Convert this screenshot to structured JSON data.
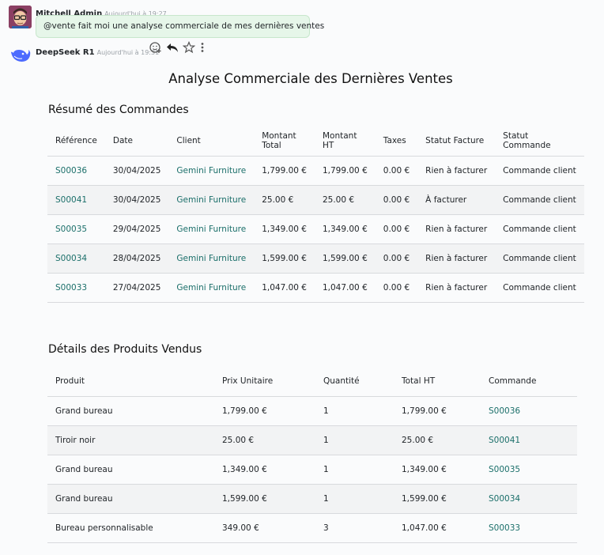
{
  "message1": {
    "author": "Mitchell Admin",
    "time": "Aujourd'hui à 19:27",
    "text": "@vente fait moi une analyse commerciale de mes dernières ventes"
  },
  "message2": {
    "author": "DeepSeek R1",
    "time": "Aujourd'hui à 19:31",
    "icons": [
      "add-reaction-icon",
      "reply-icon",
      "star-icon",
      "more-vertical-icon"
    ]
  },
  "report": {
    "title": "Analyse Commerciale des Dernières Ventes",
    "orders_heading": "Résumé des Commandes",
    "orders_headers": [
      "Référence",
      "Date",
      "Client",
      "Montant Total",
      "Montant HT",
      "Taxes",
      "Statut Facture",
      "Statut Commande"
    ],
    "orders": [
      {
        "ref": "S00036",
        "date": "30/04/2025",
        "client": "Gemini Furniture",
        "total": "1,799.00 €",
        "ht": "1,799.00 €",
        "taxes": "0.00 €",
        "invoice_status": "Rien à facturer",
        "order_status": "Commande client"
      },
      {
        "ref": "S00041",
        "date": "30/04/2025",
        "client": "Gemini Furniture",
        "total": "25.00 €",
        "ht": "25.00 €",
        "taxes": "0.00 €",
        "invoice_status": "À facturer",
        "order_status": "Commande client"
      },
      {
        "ref": "S00035",
        "date": "29/04/2025",
        "client": "Gemini Furniture",
        "total": "1,349.00 €",
        "ht": "1,349.00 €",
        "taxes": "0.00 €",
        "invoice_status": "Rien à facturer",
        "order_status": "Commande client"
      },
      {
        "ref": "S00034",
        "date": "28/04/2025",
        "client": "Gemini Furniture",
        "total": "1,599.00 €",
        "ht": "1,599.00 €",
        "taxes": "0.00 €",
        "invoice_status": "Rien à facturer",
        "order_status": "Commande client"
      },
      {
        "ref": "S00033",
        "date": "27/04/2025",
        "client": "Gemini Furniture",
        "total": "1,047.00 €",
        "ht": "1,047.00 €",
        "taxes": "0.00 €",
        "invoice_status": "Rien à facturer",
        "order_status": "Commande client"
      }
    ],
    "products_heading": "Détails des Produits Vendus",
    "products_headers": [
      "Produit",
      "Prix Unitaire",
      "Quantité",
      "Total HT",
      "Commande"
    ],
    "products": [
      {
        "product": "Grand bureau",
        "unit_price": "1,799.00 €",
        "qty": "1",
        "total_ht": "1,799.00 €",
        "order": "S00036"
      },
      {
        "product": "Tiroir noir",
        "unit_price": "25.00 €",
        "qty": "1",
        "total_ht": "25.00 €",
        "order": "S00041"
      },
      {
        "product": "Grand bureau",
        "unit_price": "1,349.00 €",
        "qty": "1",
        "total_ht": "1,349.00 €",
        "order": "S00035"
      },
      {
        "product": "Grand bureau",
        "unit_price": "1,599.00 €",
        "qty": "1",
        "total_ht": "1,599.00 €",
        "order": "S00034"
      },
      {
        "product": "Bureau personnalisable",
        "unit_price": "349.00 €",
        "qty": "3",
        "total_ht": "1,047.00 €",
        "order": "S00033"
      }
    ]
  },
  "colors": {
    "link": "#1b6f6a",
    "bubble": "#e6f6e9",
    "deepseek_blue": "#4d6bfe"
  }
}
